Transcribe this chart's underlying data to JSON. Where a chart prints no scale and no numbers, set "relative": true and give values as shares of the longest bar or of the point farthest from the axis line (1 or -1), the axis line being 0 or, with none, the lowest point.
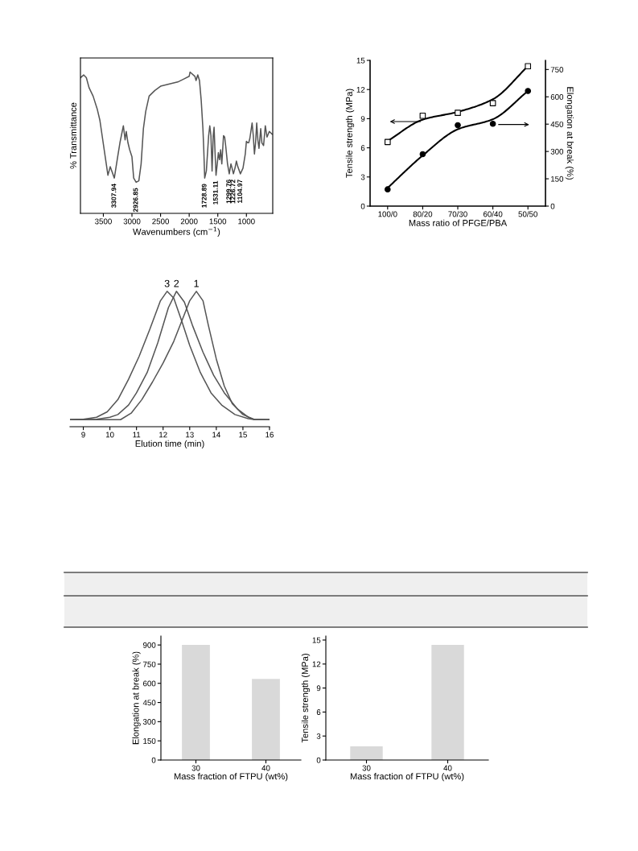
{
  "chart_data": [
    {
      "type": "line",
      "relative": true,
      "xlabel": "Wavenumbers (cm$^{−1}$)",
      "ylabel": "% Transmittance",
      "xlim": [
        3900,
        540
      ],
      "xticks": [
        3500,
        3000,
        2500,
        2000,
        1500,
        1000
      ],
      "tick_labels": "x",
      "series": [
        {
          "color": "#555555",
          "x": [
            3900,
            3844,
            3797,
            3750,
            3679,
            3608,
            3561,
            3514,
            3467,
            3420,
            3380,
            3308,
            3250,
            3210,
            3185,
            3150,
            3120,
            3100,
            3070,
            3040,
            3000,
            2970,
            2927,
            2880,
            2840,
            2800,
            2760,
            2700,
            2600,
            2500,
            2400,
            2300,
            2200,
            2100,
            2000,
            1985,
            1900,
            1880,
            1850,
            1820,
            1790,
            1760,
            1745,
            1729,
            1700,
            1660,
            1640,
            1620,
            1600,
            1580,
            1565,
            1545,
            1531,
            1510,
            1490,
            1470,
            1450,
            1430,
            1400,
            1380,
            1360,
            1330,
            1300,
            1270,
            1250,
            1227,
            1200,
            1175,
            1150,
            1105,
            1060,
            1020,
            1000,
            980,
            960,
            940,
            900,
            880,
            860,
            840,
            820,
            800,
            780,
            750,
            730,
            700,
            670,
            640,
            600,
            550
          ],
          "values": [
            0.96,
            0.98,
            0.96,
            0.89,
            0.83,
            0.74,
            0.66,
            0.53,
            0.4,
            0.27,
            0.33,
            0.25,
            0.4,
            0.5,
            0.55,
            0.62,
            0.52,
            0.58,
            0.5,
            0.45,
            0.4,
            0.25,
            0.22,
            0.23,
            0.35,
            0.6,
            0.72,
            0.83,
            0.87,
            0.9,
            0.91,
            0.92,
            0.93,
            0.95,
            0.97,
            1.0,
            0.97,
            0.94,
            0.98,
            0.94,
            0.8,
            0.6,
            0.45,
            0.25,
            0.3,
            0.55,
            0.62,
            0.55,
            0.3,
            0.55,
            0.61,
            0.4,
            0.27,
            0.35,
            0.43,
            0.38,
            0.45,
            0.35,
            0.55,
            0.54,
            0.47,
            0.35,
            0.28,
            0.35,
            0.32,
            0.28,
            0.32,
            0.37,
            0.33,
            0.28,
            0.32,
            0.42,
            0.51,
            0.5,
            0.5,
            0.53,
            0.64,
            0.55,
            0.42,
            0.5,
            0.64,
            0.52,
            0.46,
            0.6,
            0.5,
            0.48,
            0.62,
            0.54,
            0.58,
            0.56
          ]
        }
      ],
      "annotations": [
        {
          "text": "3307.94",
          "x": 3308,
          "y": 0.25
        },
        {
          "text": "2926.85",
          "x": 2927,
          "y": 0.22
        },
        {
          "text": "1728.89",
          "x": 1729,
          "y": 0.25
        },
        {
          "text": "1531.11",
          "x": 1531,
          "y": 0.27
        },
        {
          "text": "1299.76",
          "x": 1300,
          "y": 0.28
        },
        {
          "text": "1226.72",
          "x": 1227,
          "y": 0.28
        },
        {
          "text": "1104.97",
          "x": 1105,
          "y": 0.28
        }
      ]
    },
    {
      "type": "scatter",
      "categories": [
        "100/0",
        "80/20",
        "70/30",
        "60/40",
        "50/50"
      ],
      "xlabel": "Mass ratio of PFGE/PBA",
      "ylabel": "Tensile strength (MPa)",
      "y2label": "Elongation at break (%)",
      "ylim": [
        0,
        15
      ],
      "yticks": [
        0,
        3,
        6,
        9,
        12,
        15
      ],
      "y2lim": [
        0,
        800
      ],
      "y2ticks": [
        0,
        150,
        300,
        450,
        600,
        750
      ],
      "series": [
        {
          "type": "scatter",
          "marker": "square",
          "color": "#000000",
          "values": [
            6.6,
            9.3,
            9.6,
            10.6,
            14.4
          ]
        },
        {
          "type": "scatter",
          "marker": "circle",
          "color": "#000000",
          "axis": "y2",
          "values": [
            92,
            285,
            444,
            452,
            632
          ]
        },
        {
          "type": "line",
          "color": "#000000",
          "values": [
            6.7,
            8.9,
            9.7,
            11.0,
            14.4
          ]
        },
        {
          "type": "line",
          "color": "#000000",
          "axis": "y2",
          "values": [
            100,
            278,
            422,
            477,
            632
          ]
        }
      ]
    },
    {
      "type": "line",
      "relative": true,
      "xlabel": "Elution time (min)",
      "xlim": [
        8.5,
        16
      ],
      "xticks": [
        9,
        10,
        11,
        12,
        13,
        14,
        15,
        16
      ],
      "tick_labels": "x",
      "series": [
        {
          "name": "1",
          "color": "#555555",
          "x": [
            8.5,
            10.4,
            10.8,
            11.2,
            11.6,
            12.0,
            12.4,
            12.8,
            13.0,
            13.25,
            13.5,
            13.7,
            14.0,
            14.3,
            14.6,
            15.0,
            15.4,
            16.0
          ],
          "values": [
            0.052,
            0.052,
            0.1,
            0.2,
            0.33,
            0.47,
            0.63,
            0.83,
            0.93,
            1.0,
            0.93,
            0.75,
            0.5,
            0.3,
            0.17,
            0.09,
            0.055,
            0.052
          ]
        },
        {
          "name": "2",
          "color": "#555555",
          "x": [
            8.5,
            9.5,
            10.0,
            10.3,
            10.7,
            11.0,
            11.4,
            11.8,
            12.2,
            12.5,
            12.8,
            13.1,
            13.5,
            13.9,
            14.3,
            14.8,
            15.2,
            15.45,
            16.0
          ],
          "values": [
            0.052,
            0.055,
            0.07,
            0.09,
            0.16,
            0.25,
            0.4,
            0.62,
            0.88,
            1.0,
            0.92,
            0.75,
            0.55,
            0.38,
            0.25,
            0.13,
            0.07,
            0.052,
            0.052
          ]
        },
        {
          "name": "3",
          "color": "#555555",
          "x": [
            8.5,
            9.0,
            9.5,
            9.9,
            10.3,
            10.7,
            11.1,
            11.5,
            11.9,
            12.15,
            12.4,
            12.7,
            13.0,
            13.4,
            13.8,
            14.2,
            14.7,
            15.2,
            15.45,
            16.0
          ],
          "values": [
            0.052,
            0.055,
            0.07,
            0.11,
            0.2,
            0.35,
            0.52,
            0.72,
            0.93,
            1.0,
            0.95,
            0.78,
            0.6,
            0.4,
            0.25,
            0.16,
            0.09,
            0.06,
            0.052,
            0.052
          ]
        }
      ]
    },
    {
      "type": "bar",
      "categories": [
        "30",
        "40"
      ],
      "values": [
        900,
        635
      ],
      "color": "#d9d9d9",
      "xlabel": "Mass fraction of FTPU (wt%)",
      "ylabel": "Elongation at break (%)",
      "ylim": [
        0,
        970
      ],
      "yticks": [
        0,
        150,
        300,
        450,
        600,
        750,
        900
      ]
    },
    {
      "type": "bar",
      "categories": [
        "30",
        "40"
      ],
      "values": [
        1.7,
        14.4
      ],
      "color": "#d9d9d9",
      "xlabel": "Mass fraction of FTPU (wt%)",
      "ylabel": "Tensile strength (MPa)",
      "ylim": [
        0,
        15.5
      ],
      "yticks": [
        0,
        3,
        6,
        9,
        12,
        15
      ]
    }
  ]
}
